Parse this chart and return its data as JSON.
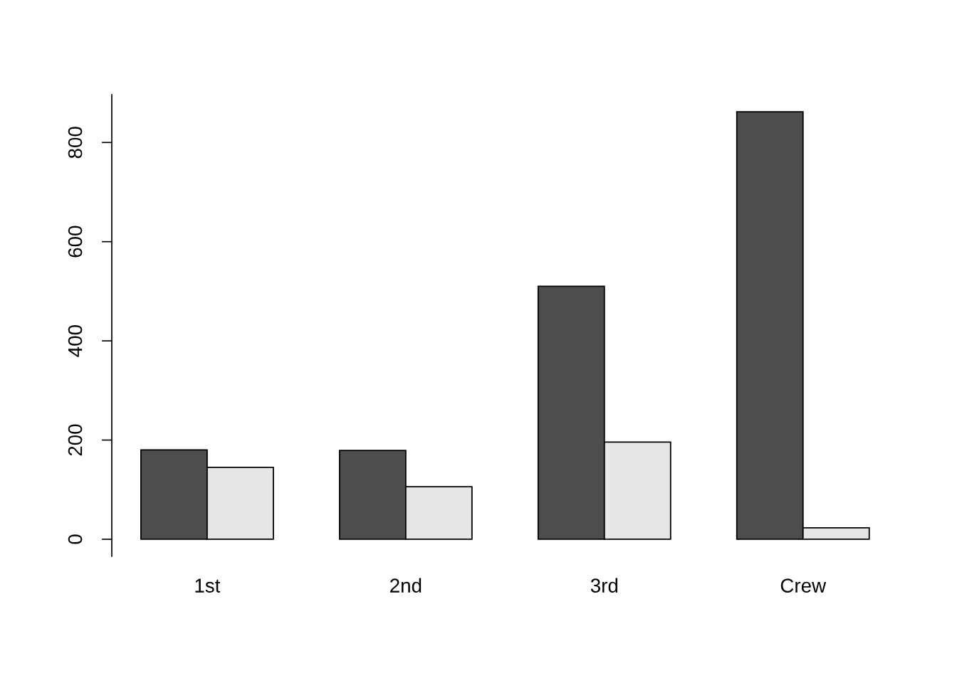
{
  "chart_data": {
    "type": "bar",
    "categories": [
      "1st",
      "2nd",
      "3rd",
      "Crew"
    ],
    "series": [
      {
        "color": "#4d4d4d",
        "values": [
          180,
          179,
          510,
          862
        ]
      },
      {
        "color": "#e6e6e6",
        "values": [
          145,
          106,
          196,
          23
        ]
      }
    ],
    "ylim": [
      -34.5,
      896.5
    ],
    "yticks": [
      0,
      200,
      400,
      600,
      800
    ],
    "grid": false,
    "legend": false
  }
}
